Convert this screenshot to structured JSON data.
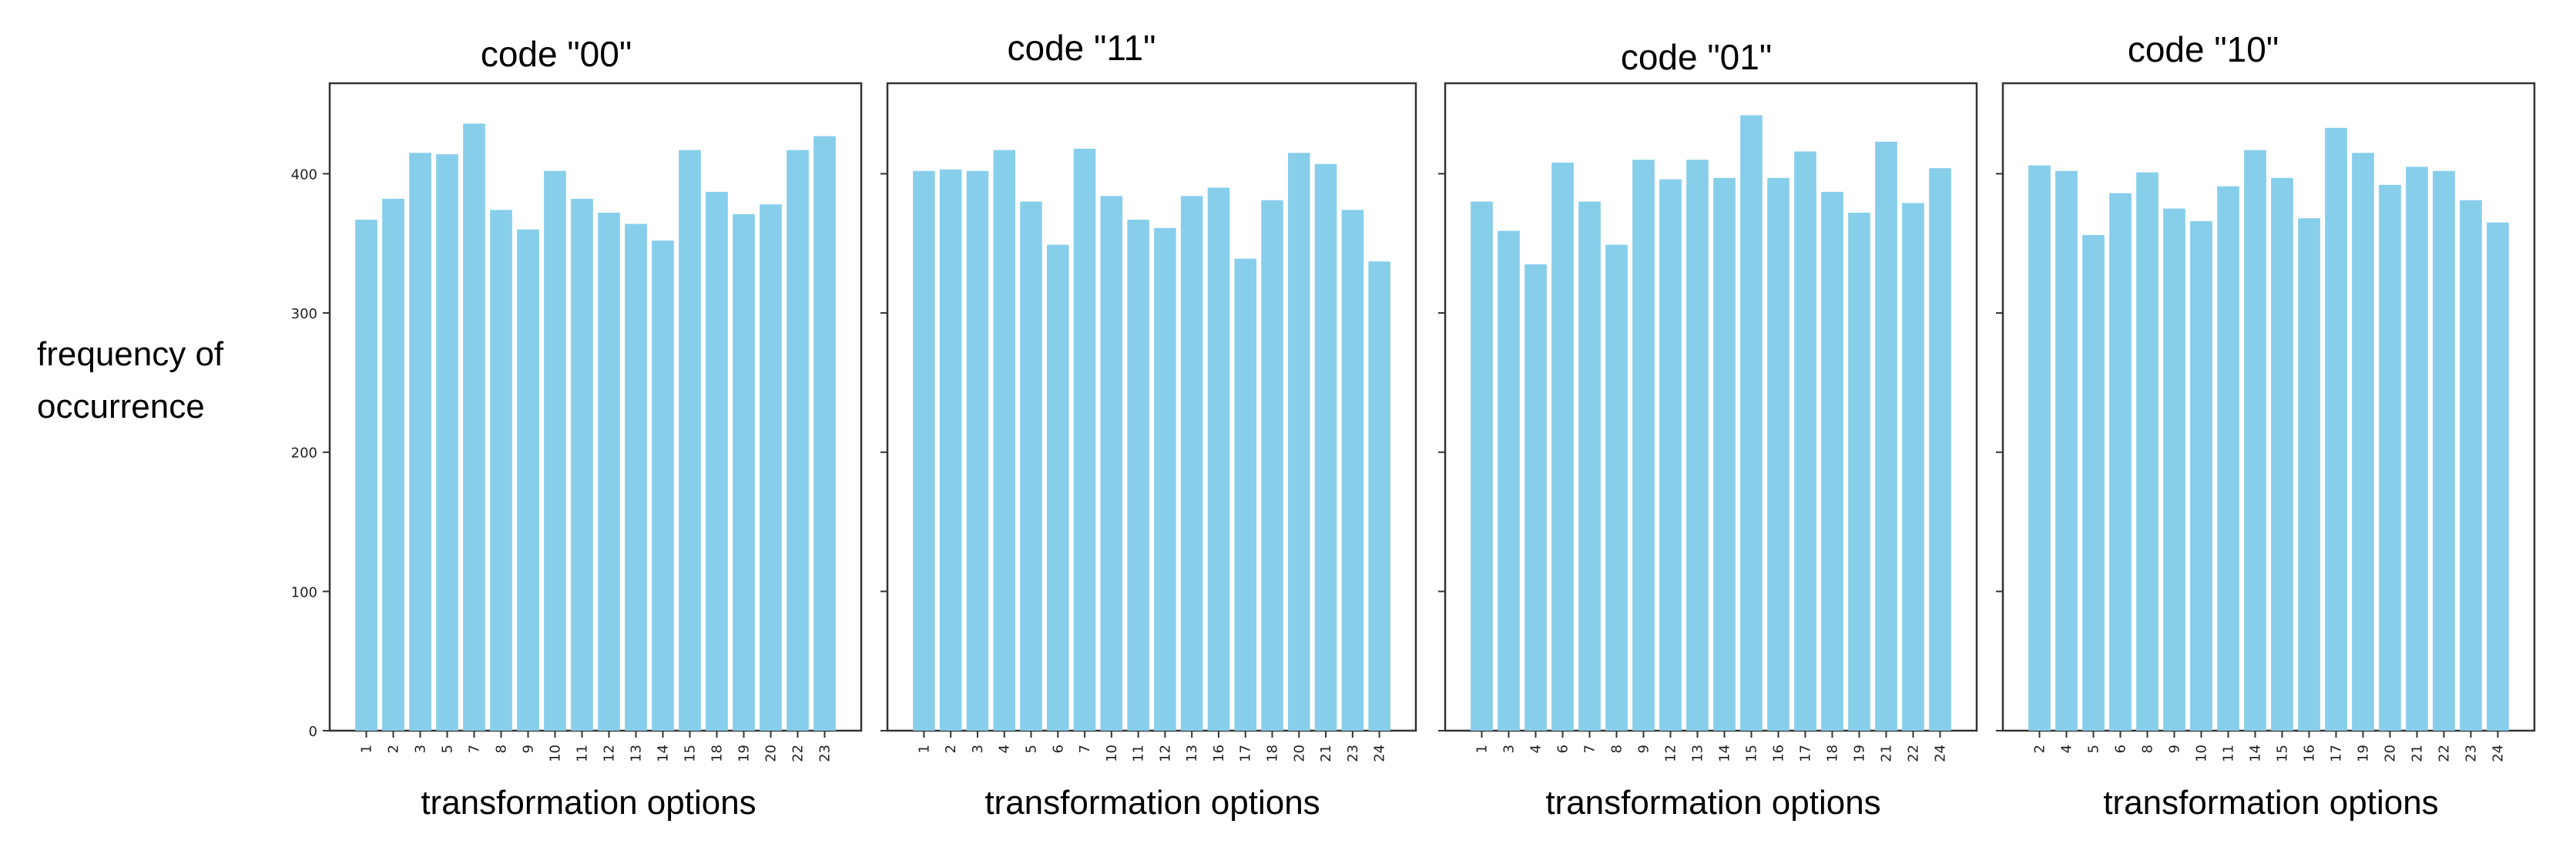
{
  "figure": {
    "ylabel_lines": [
      "frequency of",
      "occurrence"
    ],
    "bar_color": "#87ceeb"
  },
  "chart_data": [
    {
      "type": "bar",
      "title": "code \"00\"",
      "xlabel": "transformation options",
      "ylabel": "frequency of occurrence",
      "ylim": [
        0,
        465
      ],
      "yticks": [
        0,
        100,
        200,
        300,
        400
      ],
      "show_yticklabels": true,
      "categories": [
        "1",
        "2",
        "3",
        "5",
        "7",
        "8",
        "9",
        "10",
        "11",
        "12",
        "13",
        "14",
        "15",
        "18",
        "19",
        "20",
        "22",
        "23"
      ],
      "values": [
        367,
        382,
        415,
        414,
        436,
        374,
        360,
        402,
        382,
        372,
        364,
        352,
        417,
        387,
        371,
        378,
        417,
        427
      ]
    },
    {
      "type": "bar",
      "title": "code \"11\"",
      "xlabel": "transformation options",
      "ylim": [
        0,
        465
      ],
      "yticks": [
        0,
        100,
        200,
        300,
        400
      ],
      "show_yticklabels": false,
      "categories": [
        "1",
        "2",
        "3",
        "4",
        "5",
        "6",
        "7",
        "10",
        "11",
        "12",
        "13",
        "16",
        "17",
        "18",
        "20",
        "21",
        "23",
        "24"
      ],
      "values": [
        402,
        403,
        402,
        417,
        380,
        349,
        418,
        384,
        367,
        361,
        384,
        390,
        339,
        381,
        415,
        407,
        374,
        337
      ]
    },
    {
      "type": "bar",
      "title": "code \"01\"",
      "xlabel": "transformation options",
      "ylim": [
        0,
        465
      ],
      "yticks": [
        0,
        100,
        200,
        300,
        400
      ],
      "show_yticklabels": false,
      "categories": [
        "1",
        "3",
        "4",
        "6",
        "7",
        "8",
        "9",
        "12",
        "13",
        "14",
        "15",
        "16",
        "17",
        "18",
        "19",
        "21",
        "22",
        "24"
      ],
      "values": [
        380,
        359,
        335,
        408,
        380,
        349,
        410,
        396,
        410,
        397,
        442,
        397,
        416,
        387,
        372,
        423,
        379,
        404
      ]
    },
    {
      "type": "bar",
      "title": "code \"10\"",
      "xlabel": "transformation options",
      "ylim": [
        0,
        465
      ],
      "yticks": [
        0,
        100,
        200,
        300,
        400
      ],
      "show_yticklabels": false,
      "categories": [
        "2",
        "4",
        "5",
        "6",
        "8",
        "9",
        "10",
        "11",
        "14",
        "15",
        "16",
        "17",
        "19",
        "20",
        "21",
        "22",
        "23",
        "24"
      ],
      "values": [
        406,
        402,
        356,
        386,
        401,
        375,
        366,
        391,
        417,
        397,
        368,
        433,
        415,
        392,
        405,
        402,
        381,
        365
      ]
    }
  ]
}
